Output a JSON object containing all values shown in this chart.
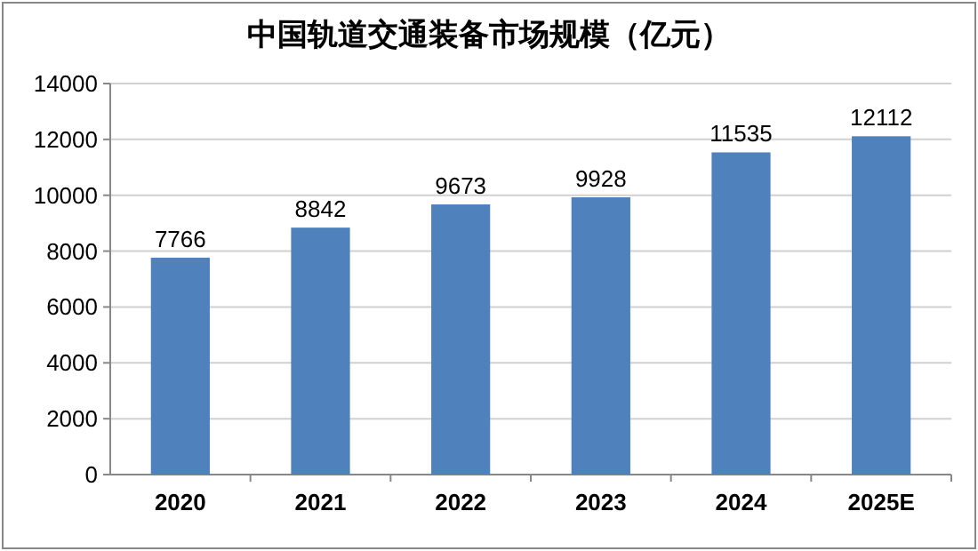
{
  "chart_data": {
    "type": "bar",
    "title": "中国轨道交通装备市场规模（亿元）",
    "categories": [
      "2020",
      "2021",
      "2022",
      "2023",
      "2024",
      "2025E"
    ],
    "values": [
      7766,
      8842,
      9673,
      9928,
      11535,
      12112
    ],
    "color": "#4f81bd",
    "ylim": [
      0,
      14000
    ],
    "yticks": [
      0,
      2000,
      4000,
      6000,
      8000,
      10000,
      12000,
      14000
    ],
    "grid": "y",
    "data_labels": true
  }
}
